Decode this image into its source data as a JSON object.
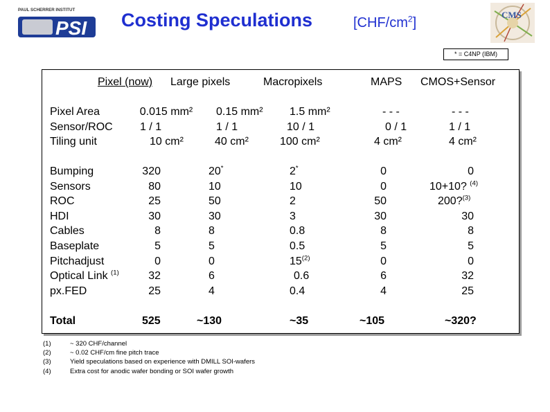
{
  "header": {
    "logo_top_text": "PAUL SCHERRER INSTITUT",
    "logo_text": "PSI",
    "title": "Costing Speculations",
    "unit_prefix": "[CHF/cm",
    "unit_sup": "2",
    "unit_suffix": "]",
    "cms_logo_text": "CMS",
    "note_box": "* = C4NP (IBM)"
  },
  "columns": [
    {
      "label": "Pixel (now)",
      "underline": true
    },
    {
      "label": "Large pixels",
      "underline": false
    },
    {
      "label": "Macropixels",
      "underline": false
    },
    {
      "label": "MAPS",
      "underline": false
    },
    {
      "label": "CMOS+Sensor",
      "underline": false
    }
  ],
  "spec_rows": {
    "labels": [
      "Pixel Area",
      "Sensor/ROC",
      "Tiling unit"
    ],
    "values": [
      [
        "0.015 mm²",
        "1 / 1",
        "10 cm²"
      ],
      [
        "0.15 mm²",
        "1 / 1",
        "40 cm²"
      ],
      [
        "1.5 mm²",
        "10 / 1",
        "100 cm²"
      ],
      [
        "- - -",
        "0 / 1",
        "4 cm²"
      ],
      [
        "- - -",
        "1 / 1",
        "4 cm²"
      ]
    ]
  },
  "cost_rows": {
    "labels": [
      "Bumping",
      "Sensors",
      "ROC",
      "HDI",
      "Cables",
      "Baseplate",
      "Pitchadjust",
      "Optical Link",
      "px.FED"
    ],
    "label_sups": {
      "7": "(1)"
    },
    "col0": [
      "320",
      "80",
      "25",
      "30",
      "8",
      "5",
      "0",
      "32",
      "25"
    ],
    "col1": [
      "20",
      "10",
      "50",
      "30",
      "8",
      "5",
      "0",
      "6",
      "4"
    ],
    "col1_sups": {
      "0": "*"
    },
    "col2": [
      "2",
      "10",
      "2",
      "3",
      "0.8",
      "0.5",
      "15",
      "0.6",
      "0.4"
    ],
    "col2_sups": {
      "0": "*",
      "6": "(2)"
    },
    "col3": [
      "0",
      "0",
      "50",
      "30",
      "8",
      "5",
      "0",
      "6",
      "4"
    ],
    "col4": [
      "0",
      "10+10?",
      "200?",
      "30",
      "8",
      "5",
      "0",
      "32",
      "25"
    ],
    "col4_sups": {
      "1": "(4)",
      "2": "(3)"
    }
  },
  "total": {
    "label": "Total",
    "values": [
      "525",
      "~130",
      "~35",
      "~105",
      "~320?"
    ]
  },
  "footnotes": [
    {
      "num": "(1)",
      "text": "~ 320 CHF/channel"
    },
    {
      "num": "(2)",
      "text": "~ 0.02 CHF/cm fine pitch trace"
    },
    {
      "num": "(3)",
      "text": "Yield speculations based on experience with DMILL SOI-wafers"
    },
    {
      "num": "(4)",
      "text": "Extra cost for anodic wafer bonding or SOI wafer growth"
    }
  ],
  "colors": {
    "title": "#1f2fd0",
    "logo_blue": "#1e3c96"
  }
}
